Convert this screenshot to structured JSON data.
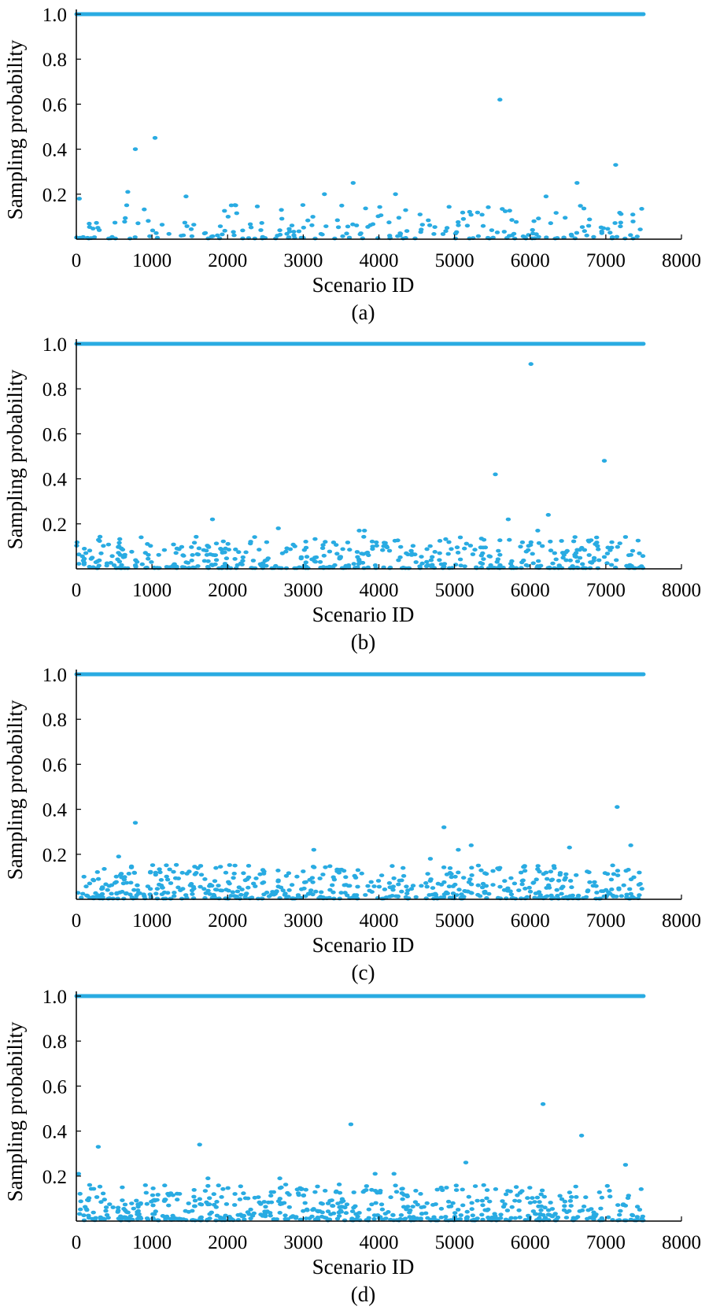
{
  "colors": {
    "points": "#29abe2",
    "axis": "#000000"
  },
  "chart_data": [
    {
      "type": "scatter",
      "panel_label": "(a)",
      "xlabel": "Scenario ID",
      "ylabel": "Sampling probability",
      "xlim": [
        0,
        8000
      ],
      "ylim": [
        0,
        1.0
      ],
      "xticks": [
        0,
        1000,
        2000,
        3000,
        4000,
        5000,
        6000,
        7000,
        8000
      ],
      "yticks": [
        0.2,
        0.4,
        0.6,
        0.8,
        1.0
      ],
      "ytick_labels": [
        "0.2",
        "0.4",
        "0.6",
        "0.8",
        "1.0"
      ],
      "saturated_value": 1.0,
      "id_range": [
        0,
        7500
      ],
      "outliers": [
        [
          5600,
          0.62
        ],
        [
          1040,
          0.45
        ],
        [
          780,
          0.4
        ],
        [
          7130,
          0.33
        ],
        [
          3660,
          0.25
        ],
        [
          6620,
          0.25
        ],
        [
          4220,
          0.2
        ],
        [
          3280,
          0.2
        ],
        [
          1450,
          0.19
        ],
        [
          6210,
          0.19
        ],
        [
          680,
          0.21
        ],
        [
          40,
          0.18
        ]
      ],
      "seed": 11,
      "n_low": 230,
      "low_max": 0.15
    },
    {
      "type": "scatter",
      "panel_label": "(b)",
      "xlabel": "Scenario ID",
      "ylabel": "Sampling probability",
      "xlim": [
        0,
        8000
      ],
      "ylim": [
        0,
        1.0
      ],
      "xticks": [
        0,
        1000,
        2000,
        3000,
        4000,
        5000,
        6000,
        7000,
        8000
      ],
      "yticks": [
        0.2,
        0.4,
        0.6,
        0.8,
        1.0
      ],
      "ytick_labels": [
        "0.2",
        "0.4",
        "0.6",
        "0.8",
        "1.0"
      ],
      "saturated_value": 1.0,
      "id_range": [
        0,
        7500
      ],
      "outliers": [
        [
          6010,
          0.91
        ],
        [
          6980,
          0.48
        ],
        [
          5540,
          0.42
        ],
        [
          6240,
          0.24
        ],
        [
          1800,
          0.22
        ],
        [
          5710,
          0.22
        ],
        [
          2670,
          0.18
        ],
        [
          3810,
          0.17
        ],
        [
          3740,
          0.17
        ],
        [
          6100,
          0.17
        ]
      ],
      "seed": 23,
      "n_low": 480,
      "low_max": 0.14
    },
    {
      "type": "scatter",
      "panel_label": "(c)",
      "xlabel": "Scenario ID",
      "ylabel": "Sampling probability",
      "xlim": [
        0,
        8000
      ],
      "ylim": [
        0,
        1.0
      ],
      "xticks": [
        0,
        1000,
        2000,
        3000,
        4000,
        5000,
        6000,
        7000,
        8000
      ],
      "yticks": [
        0.2,
        0.4,
        0.6,
        0.8,
        1.0
      ],
      "ytick_labels": [
        "0.2",
        "0.4",
        "0.6",
        "0.8",
        "1.0"
      ],
      "saturated_value": 1.0,
      "id_range": [
        0,
        7500
      ],
      "outliers": [
        [
          7150,
          0.41
        ],
        [
          780,
          0.34
        ],
        [
          4860,
          0.32
        ],
        [
          7330,
          0.24
        ],
        [
          5220,
          0.24
        ],
        [
          6520,
          0.23
        ],
        [
          3140,
          0.22
        ],
        [
          5050,
          0.22
        ],
        [
          560,
          0.19
        ],
        [
          4680,
          0.18
        ]
      ],
      "seed": 37,
      "n_low": 560,
      "low_max": 0.15
    },
    {
      "type": "scatter",
      "panel_label": "(d)",
      "xlabel": "Scenario ID",
      "ylabel": "Sampling probability",
      "xlim": [
        0,
        8000
      ],
      "ylim": [
        0,
        1.0
      ],
      "xticks": [
        0,
        1000,
        2000,
        3000,
        4000,
        5000,
        6000,
        7000,
        8000
      ],
      "yticks": [
        0.2,
        0.4,
        0.6,
        0.8,
        1.0
      ],
      "ytick_labels": [
        "0.2",
        "0.4",
        "0.6",
        "0.8",
        "1.0"
      ],
      "saturated_value": 1.0,
      "id_range": [
        0,
        7500
      ],
      "outliers": [
        [
          6170,
          0.52
        ],
        [
          3630,
          0.43
        ],
        [
          6680,
          0.38
        ],
        [
          1630,
          0.34
        ],
        [
          290,
          0.33
        ],
        [
          5150,
          0.26
        ],
        [
          7260,
          0.25
        ],
        [
          30,
          0.21
        ],
        [
          3950,
          0.21
        ],
        [
          4200,
          0.21
        ],
        [
          2690,
          0.19
        ],
        [
          1740,
          0.19
        ]
      ],
      "seed": 53,
      "n_low": 620,
      "low_max": 0.16
    }
  ]
}
